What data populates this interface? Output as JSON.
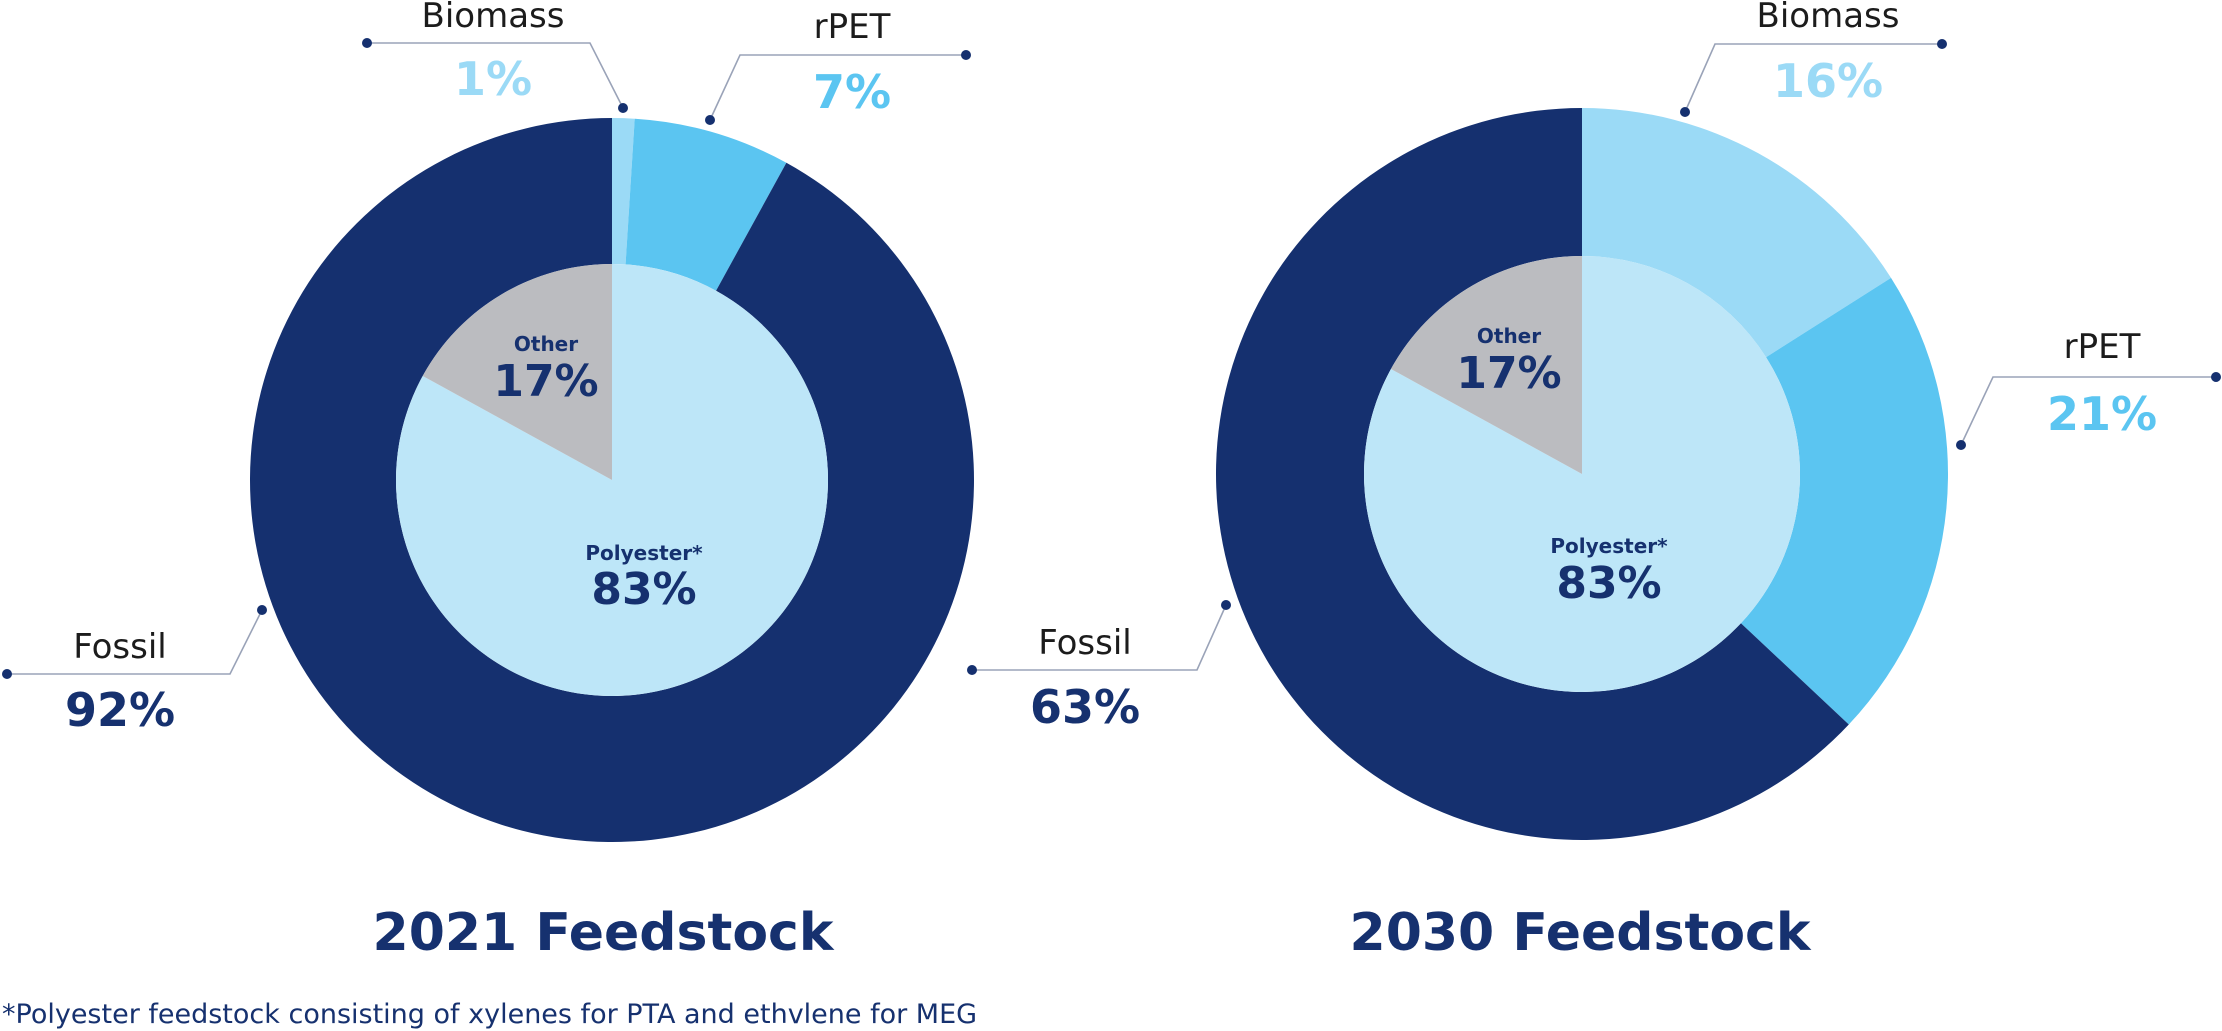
{
  "colors": {
    "fossil": "#15306f",
    "biomass": "#9bdaf6",
    "rpet": "#5bc5f1",
    "polyester": "#bde6f8",
    "other": "#bbbcc0",
    "dark_text": "#16316f",
    "name_text": "#1c1c1c"
  },
  "chart_data": [
    {
      "type": "pie",
      "title": "2021 Feedstock",
      "outer": [
        {
          "name": "Biomass",
          "value": 1,
          "label": "1%",
          "color_key": "biomass"
        },
        {
          "name": "rPET",
          "value": 7,
          "label": "7%",
          "color_key": "rpet"
        },
        {
          "name": "Fossil",
          "value": 92,
          "label": "92%",
          "color_key": "fossil"
        }
      ],
      "inner": [
        {
          "name": "Polyester*",
          "value": 83,
          "label": "83%",
          "color_key": "polyester"
        },
        {
          "name": "Other",
          "value": 17,
          "label": "17%",
          "color_key": "other"
        }
      ]
    },
    {
      "type": "pie",
      "title": "2030 Feedstock",
      "outer": [
        {
          "name": "Biomass",
          "value": 16,
          "label": "16%",
          "color_key": "biomass"
        },
        {
          "name": "rPET",
          "value": 21,
          "label": "21%",
          "color_key": "rpet"
        },
        {
          "name": "Fossil",
          "value": 63,
          "label": "63%",
          "color_key": "fossil"
        }
      ],
      "inner": [
        {
          "name": "Polyester*",
          "value": 83,
          "label": "83%",
          "color_key": "polyester"
        },
        {
          "name": "Other",
          "value": 17,
          "label": "17%",
          "color_key": "other"
        }
      ]
    }
  ],
  "footnote": "*Polyester feedstock consisting of xylenes for PTA and ethvlene for MEG"
}
